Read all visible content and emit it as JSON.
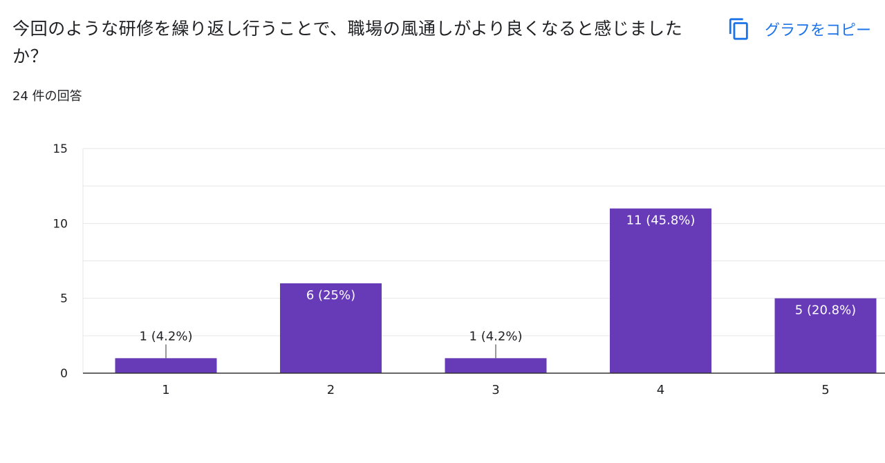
{
  "question": "今回のような研修を繰り返し行うことで、職場の風通しがより良くなると感じましたか？",
  "response_count": "24 件の回答",
  "copy_button": {
    "label": "グラフをコピー",
    "icon": "copy-icon"
  },
  "colors": {
    "bar": "#673ab7",
    "accent": "#1a73e8",
    "grid": "#e6e6e6",
    "axis": "#333333"
  },
  "chart_data": {
    "type": "bar",
    "categories": [
      "1",
      "2",
      "3",
      "4",
      "5"
    ],
    "values": [
      1,
      6,
      1,
      11,
      5
    ],
    "data_labels": [
      "1 (4.2%)",
      "6 (25%)",
      "1 (4.2%)",
      "11 (45.8%)",
      "5 (20.8%)"
    ],
    "yticks": [
      0,
      5,
      10,
      15
    ],
    "ylim": [
      0,
      15
    ],
    "grid": true,
    "legend": false
  }
}
